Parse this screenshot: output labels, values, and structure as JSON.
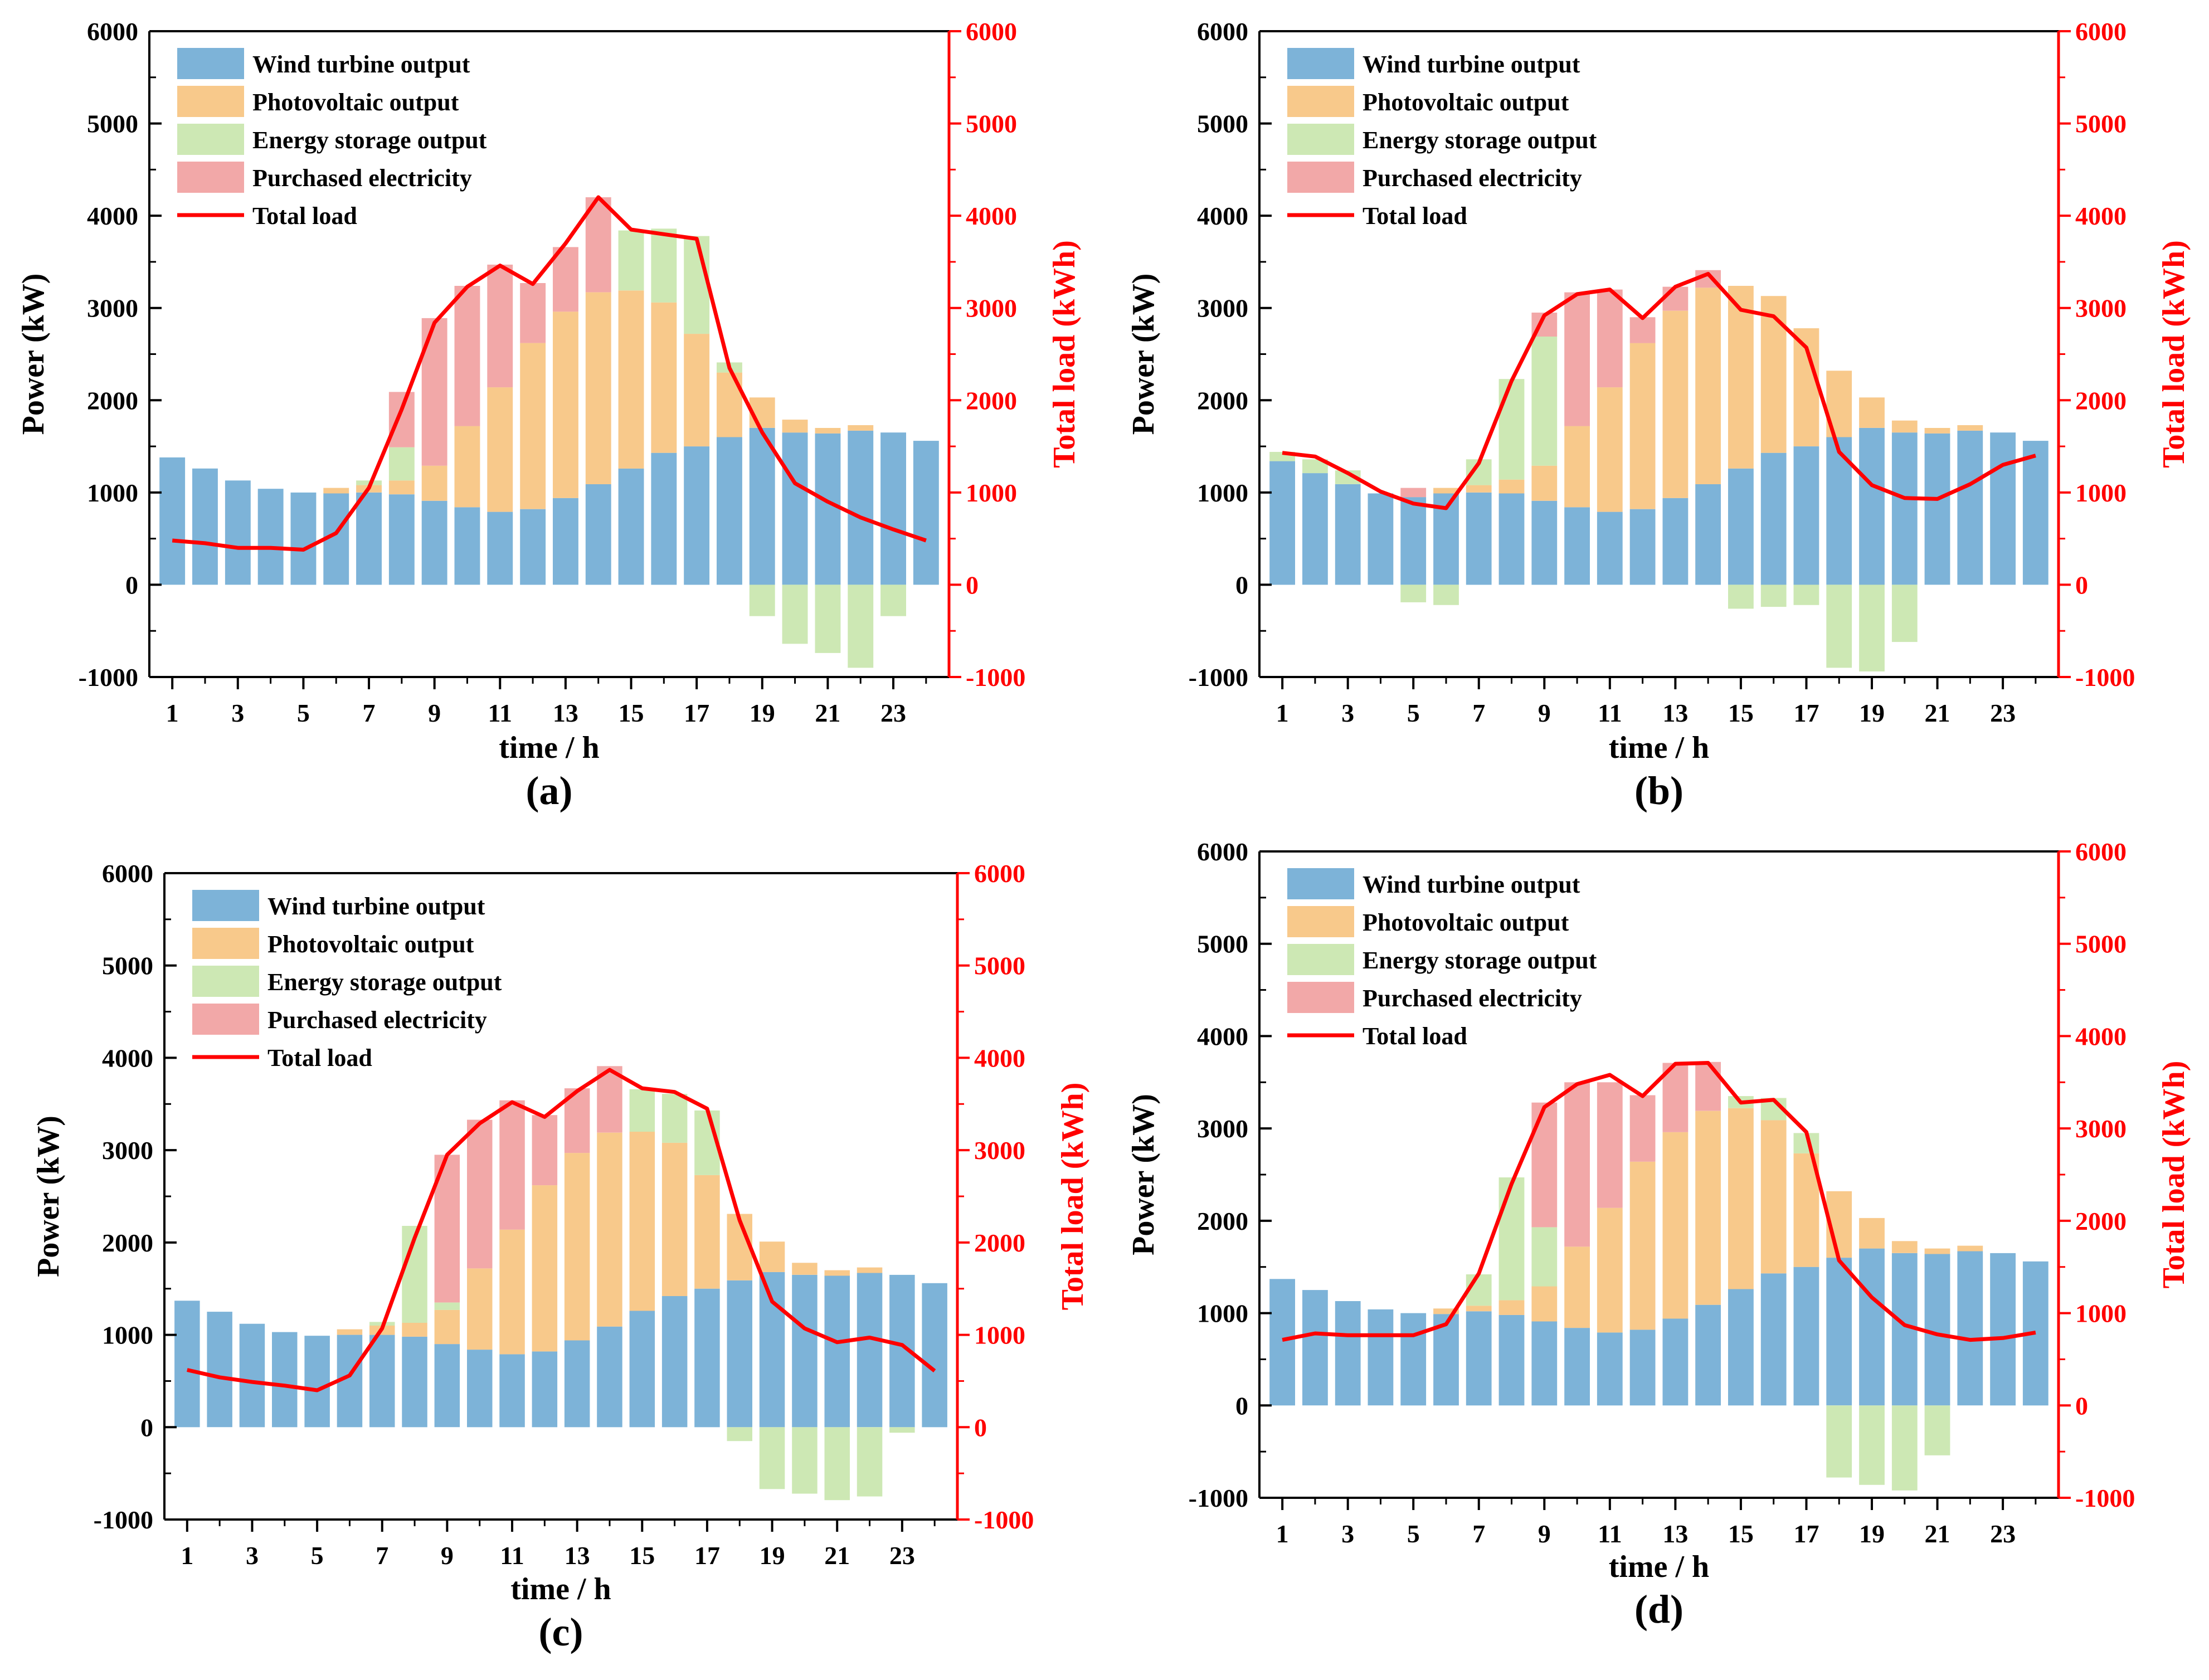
{
  "figure": {
    "colors": {
      "wind": "#7db3d8",
      "pv": "#f8c98b",
      "storage": "#cde8b4",
      "purchased": "#f2a8a8",
      "load": "#ff0000",
      "axis": "#000000",
      "right_axis": "#ff0000"
    }
  },
  "chart_data": [
    {
      "type": "bar",
      "panel_label": "(a)",
      "xlabel": "time / h",
      "ylabel": "Power (kW)",
      "ylabel_right": "Total load (kWh)",
      "ylim": [
        -1000,
        6000
      ],
      "ylim_right": [
        -1000,
        6000
      ],
      "yticks": [
        -1000,
        0,
        1000,
        2000,
        3000,
        4000,
        5000,
        6000
      ],
      "xtick_labels": [
        "1",
        "3",
        "5",
        "7",
        "9",
        "11",
        "13",
        "15",
        "17",
        "19",
        "21",
        "23"
      ],
      "hours": [
        1,
        2,
        3,
        4,
        5,
        6,
        7,
        8,
        9,
        10,
        11,
        12,
        13,
        14,
        15,
        16,
        17,
        18,
        19,
        20,
        21,
        22,
        23,
        24
      ],
      "legend": [
        "Wind turbine output",
        "Photovoltaic output",
        "Energy storage output",
        "Purchased electricity",
        "Total load"
      ],
      "series": [
        {
          "name": "Wind turbine output",
          "key": "wind",
          "values": [
            1380,
            1260,
            1130,
            1040,
            1000,
            990,
            1000,
            980,
            910,
            840,
            790,
            820,
            940,
            1090,
            1260,
            1430,
            1500,
            1600,
            1700,
            1650,
            1640,
            1670,
            1650,
            1560
          ]
        },
        {
          "name": "Photovoltaic output",
          "key": "pv",
          "values": [
            0,
            0,
            0,
            0,
            0,
            60,
            80,
            150,
            380,
            880,
            1350,
            1800,
            2020,
            2080,
            1930,
            1630,
            1220,
            700,
            330,
            140,
            60,
            60,
            0,
            0
          ]
        },
        {
          "name": "Energy storage output",
          "key": "storage",
          "values": [
            0,
            0,
            0,
            0,
            0,
            0,
            50,
            360,
            0,
            0,
            0,
            0,
            0,
            0,
            650,
            800,
            1060,
            110,
            -340,
            -640,
            -740,
            -900,
            -340,
            0
          ]
        },
        {
          "name": "Purchased electricity",
          "key": "purchased",
          "values": [
            0,
            0,
            0,
            0,
            0,
            0,
            0,
            600,
            1600,
            1520,
            1330,
            650,
            700,
            1030,
            0,
            0,
            0,
            0,
            0,
            0,
            0,
            0,
            0,
            0
          ]
        }
      ],
      "total_load": [
        480,
        450,
        400,
        400,
        380,
        560,
        1050,
        1900,
        2840,
        3230,
        3460,
        3260,
        3700,
        4200,
        3850,
        3800,
        3750,
        2350,
        1650,
        1100,
        900,
        730,
        600,
        480
      ]
    },
    {
      "type": "bar",
      "panel_label": "(b)",
      "xlabel": "time / h",
      "ylabel": "Power (kW)",
      "ylabel_right": "Total load (kWh)",
      "ylim": [
        -1000,
        6000
      ],
      "ylim_right": [
        -1000,
        6000
      ],
      "yticks": [
        -1000,
        0,
        1000,
        2000,
        3000,
        4000,
        5000,
        6000
      ],
      "xtick_labels": [
        "1",
        "3",
        "5",
        "7",
        "9",
        "11",
        "13",
        "15",
        "17",
        "19",
        "21",
        "23"
      ],
      "hours": [
        1,
        2,
        3,
        4,
        5,
        6,
        7,
        8,
        9,
        10,
        11,
        12,
        13,
        14,
        15,
        16,
        17,
        18,
        19,
        20,
        21,
        22,
        23,
        24
      ],
      "legend": [
        "Wind turbine output",
        "Photovoltaic output",
        "Energy storage output",
        "Purchased electricity",
        "Total load"
      ],
      "series": [
        {
          "name": "Wind turbine output",
          "key": "wind",
          "values": [
            1340,
            1210,
            1090,
            990,
            950,
            990,
            1000,
            990,
            910,
            840,
            790,
            820,
            940,
            1090,
            1260,
            1430,
            1500,
            1600,
            1700,
            1650,
            1640,
            1670,
            1650,
            1560
          ]
        },
        {
          "name": "Photovoltaic output",
          "key": "pv",
          "values": [
            0,
            0,
            0,
            0,
            0,
            60,
            80,
            150,
            380,
            880,
            1350,
            1800,
            2030,
            2130,
            1980,
            1700,
            1280,
            720,
            330,
            130,
            60,
            60,
            0,
            0
          ]
        },
        {
          "name": "Energy storage output",
          "key": "storage",
          "values": [
            100,
            150,
            150,
            0,
            -190,
            -220,
            280,
            1090,
            1400,
            0,
            0,
            0,
            0,
            0,
            -260,
            -240,
            -220,
            -900,
            -940,
            -620,
            0,
            0,
            0,
            0
          ]
        },
        {
          "name": "Purchased electricity",
          "key": "purchased",
          "values": [
            0,
            0,
            0,
            0,
            100,
            0,
            0,
            0,
            260,
            1450,
            1060,
            280,
            260,
            190,
            0,
            0,
            0,
            0,
            0,
            0,
            0,
            0,
            0,
            0
          ]
        }
      ],
      "total_load": [
        1430,
        1390,
        1210,
        1010,
        880,
        830,
        1320,
        2210,
        2920,
        3150,
        3200,
        2890,
        3230,
        3370,
        2980,
        2910,
        2570,
        1440,
        1080,
        940,
        930,
        1090,
        1300,
        1400
      ]
    },
    {
      "type": "bar",
      "panel_label": "(c)",
      "xlabel": "time / h",
      "ylabel": "Power (kW)",
      "ylabel_right": "Total load (kWh)",
      "ylim": [
        -1000,
        6000
      ],
      "ylim_right": [
        -1000,
        6000
      ],
      "yticks": [
        -1000,
        0,
        1000,
        2000,
        3000,
        4000,
        5000,
        6000
      ],
      "xtick_labels": [
        "1",
        "3",
        "5",
        "7",
        "9",
        "11",
        "13",
        "15",
        "17",
        "19",
        "21",
        "23"
      ],
      "hours": [
        1,
        2,
        3,
        4,
        5,
        6,
        7,
        8,
        9,
        10,
        11,
        12,
        13,
        14,
        15,
        16,
        17,
        18,
        19,
        20,
        21,
        22,
        23,
        24
      ],
      "legend": [
        "Wind turbine output",
        "Photovoltaic output",
        "Energy storage output",
        "Purchased electricity",
        "Total load"
      ],
      "series": [
        {
          "name": "Wind turbine output",
          "key": "wind",
          "values": [
            1370,
            1250,
            1120,
            1030,
            990,
            1000,
            1000,
            980,
            900,
            840,
            790,
            820,
            940,
            1090,
            1260,
            1420,
            1500,
            1590,
            1680,
            1650,
            1640,
            1670,
            1650,
            1560
          ]
        },
        {
          "name": "Photovoltaic output",
          "key": "pv",
          "values": [
            0,
            0,
            0,
            0,
            0,
            60,
            100,
            150,
            370,
            880,
            1350,
            1800,
            2030,
            2100,
            1940,
            1660,
            1230,
            720,
            330,
            130,
            60,
            60,
            0,
            0
          ]
        },
        {
          "name": "Energy storage output",
          "key": "storage",
          "values": [
            0,
            0,
            0,
            0,
            0,
            0,
            40,
            1050,
            80,
            0,
            0,
            0,
            0,
            0,
            460,
            530,
            700,
            -150,
            -670,
            -720,
            -790,
            -750,
            -60,
            0
          ]
        },
        {
          "name": "Purchased electricity",
          "key": "purchased",
          "values": [
            0,
            0,
            0,
            0,
            0,
            0,
            0,
            0,
            1600,
            1610,
            1400,
            760,
            700,
            720,
            0,
            0,
            0,
            0,
            0,
            0,
            0,
            0,
            0,
            0
          ]
        }
      ],
      "total_load": [
        620,
        540,
        490,
        450,
        400,
        560,
        1070,
        2050,
        2950,
        3290,
        3520,
        3360,
        3640,
        3870,
        3670,
        3630,
        3450,
        2240,
        1360,
        1070,
        920,
        970,
        890,
        610
      ]
    },
    {
      "type": "bar",
      "panel_label": "(d)",
      "xlabel": "time / h",
      "ylabel": "Power (kW)",
      "ylabel_right": "Total load (kWh)",
      "ylim": [
        -1000,
        6000
      ],
      "ylim_right": [
        -1000,
        6000
      ],
      "yticks": [
        -1000,
        0,
        1000,
        2000,
        3000,
        4000,
        5000,
        6000
      ],
      "xtick_labels": [
        "1",
        "3",
        "5",
        "7",
        "9",
        "11",
        "13",
        "15",
        "17",
        "19",
        "21",
        "23"
      ],
      "hours": [
        1,
        2,
        3,
        4,
        5,
        6,
        7,
        8,
        9,
        10,
        11,
        12,
        13,
        14,
        15,
        16,
        17,
        18,
        19,
        20,
        21,
        22,
        23,
        24
      ],
      "legend": [
        "Wind turbine output",
        "Photovoltaic output",
        "Energy storage output",
        "Purchased electricity",
        "Total load"
      ],
      "series": [
        {
          "name": "Wind turbine output",
          "key": "wind",
          "values": [
            1370,
            1250,
            1130,
            1040,
            1000,
            990,
            1020,
            980,
            910,
            840,
            790,
            820,
            940,
            1090,
            1260,
            1430,
            1500,
            1600,
            1700,
            1650,
            1640,
            1670,
            1650,
            1560
          ]
        },
        {
          "name": "Photovoltaic output",
          "key": "pv",
          "values": [
            0,
            0,
            0,
            0,
            0,
            60,
            60,
            160,
            380,
            880,
            1350,
            1820,
            2020,
            2100,
            1960,
            1660,
            1230,
            720,
            330,
            130,
            60,
            60,
            0,
            0
          ]
        },
        {
          "name": "Energy storage output",
          "key": "storage",
          "values": [
            0,
            0,
            0,
            0,
            0,
            0,
            340,
            1330,
            640,
            0,
            0,
            0,
            0,
            0,
            130,
            240,
            220,
            -780,
            -860,
            -920,
            -540,
            0,
            0,
            0
          ]
        },
        {
          "name": "Purchased electricity",
          "key": "purchased",
          "values": [
            0,
            0,
            0,
            0,
            0,
            0,
            0,
            0,
            1350,
            1780,
            1360,
            720,
            750,
            530,
            0,
            0,
            0,
            0,
            0,
            0,
            0,
            0,
            0,
            0
          ]
        }
      ],
      "total_load": [
        710,
        780,
        760,
        760,
        760,
        880,
        1430,
        2400,
        3230,
        3480,
        3580,
        3350,
        3700,
        3710,
        3280,
        3310,
        2960,
        1570,
        1170,
        870,
        770,
        710,
        730,
        790
      ]
    }
  ]
}
